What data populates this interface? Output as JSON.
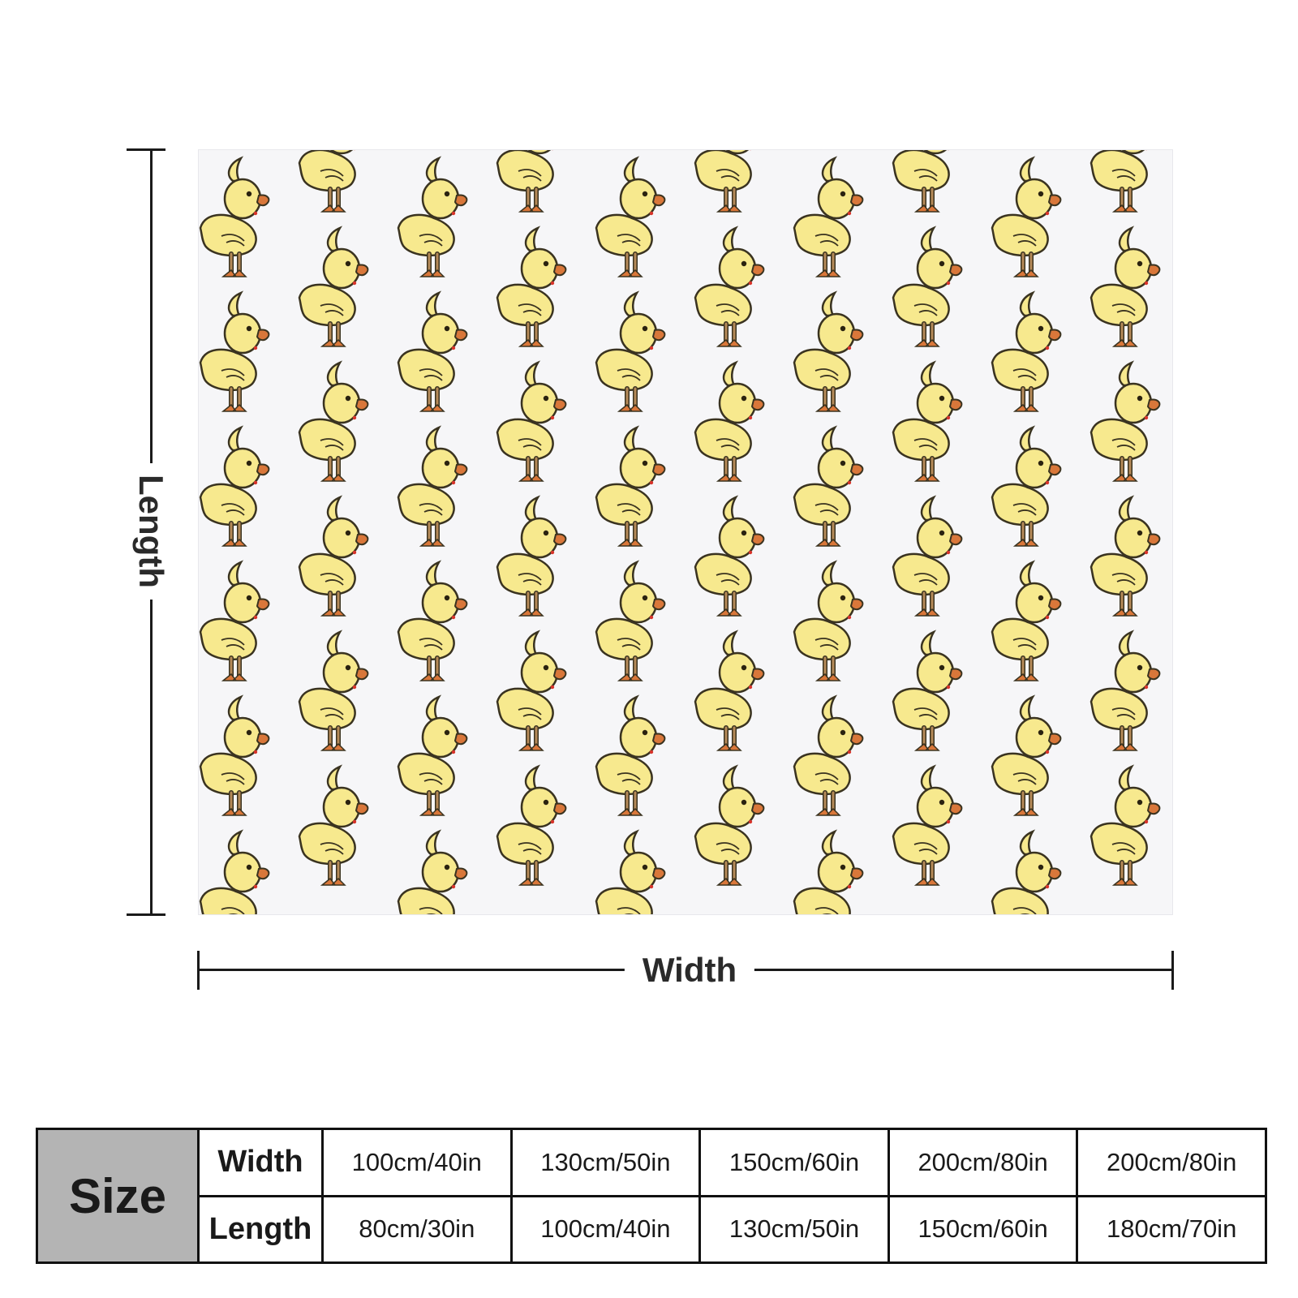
{
  "dimensions": {
    "length_label": "Length",
    "width_label": "Width"
  },
  "blanket": {
    "pattern_icon": "duckling-icon",
    "background_color": "#f6f6f8",
    "duck_body_color": "#f7e98e",
    "duck_beak_color": "#d9773a"
  },
  "size_table": {
    "title": "Size",
    "rows": [
      {
        "label": "Width",
        "values": [
          "100cm/40in",
          "130cm/50in",
          "150cm/60in",
          "200cm/80in",
          "200cm/80in"
        ]
      },
      {
        "label": "Length",
        "values": [
          "80cm/30in",
          "100cm/40in",
          "130cm/50in",
          "150cm/60in",
          "180cm/70in"
        ]
      }
    ]
  }
}
